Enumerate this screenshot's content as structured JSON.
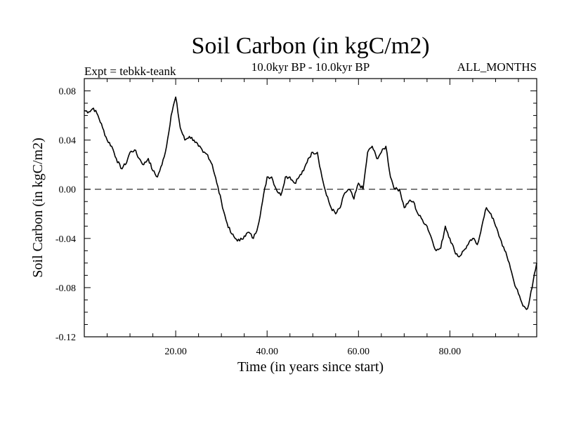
{
  "chart_data": {
    "type": "line",
    "title": "Soil Carbon (in kgC/m2)",
    "subtitle": "10.0kyr BP - 10.0kyr BP",
    "expt_label": "Expt = tebkk-teank",
    "months_label": "ALL_MONTHS",
    "xlabel": "Time (in years since start)",
    "ylabel": "Soil Carbon (in kgC/m2)",
    "xlim": [
      0,
      99
    ],
    "ylim": [
      -0.12,
      0.09
    ],
    "x_ticks": [
      20,
      40,
      60,
      80
    ],
    "x_tick_labels": [
      "20.00",
      "40.00",
      "60.00",
      "80.00"
    ],
    "y_ticks": [
      0.08,
      0.04,
      0.0,
      -0.04,
      -0.08,
      -0.12
    ],
    "y_tick_labels": [
      "0.08",
      "0.04",
      "0.00",
      "-0.04",
      "-0.08",
      "-0.12"
    ],
    "reference_line": {
      "y": 0.0,
      "style": "dashed"
    },
    "series": [
      {
        "name": "Soil Carbon",
        "x": [
          0,
          1,
          2,
          3,
          4,
          5,
          6,
          7,
          8,
          9,
          10,
          11,
          12,
          13,
          14,
          15,
          16,
          17,
          18,
          19,
          20,
          21,
          22,
          23,
          24,
          25,
          26,
          27,
          28,
          29,
          30,
          31,
          32,
          33,
          34,
          35,
          36,
          37,
          38,
          39,
          40,
          41,
          42,
          43,
          44,
          45,
          46,
          47,
          48,
          49,
          50,
          51,
          52,
          53,
          54,
          55,
          56,
          57,
          58,
          59,
          60,
          61,
          62,
          63,
          64,
          65,
          66,
          67,
          68,
          69,
          70,
          71,
          72,
          73,
          74,
          75,
          76,
          77,
          78,
          79,
          80,
          81,
          82,
          83,
          84,
          85,
          86,
          87,
          88,
          89,
          90,
          91,
          92,
          93,
          94,
          95,
          96,
          97,
          98,
          99
        ],
        "values": [
          0.064,
          0.063,
          0.066,
          0.06,
          0.05,
          0.04,
          0.035,
          0.025,
          0.017,
          0.02,
          0.03,
          0.032,
          0.025,
          0.02,
          0.025,
          0.015,
          0.01,
          0.02,
          0.035,
          0.06,
          0.075,
          0.05,
          0.04,
          0.043,
          0.04,
          0.035,
          0.03,
          0.028,
          0.02,
          0.005,
          -0.01,
          -0.025,
          -0.035,
          -0.04,
          -0.042,
          -0.038,
          -0.035,
          -0.04,
          -0.03,
          -0.01,
          0.01,
          0.01,
          0.0,
          -0.005,
          0.01,
          0.01,
          0.005,
          0.01,
          0.015,
          0.025,
          0.03,
          0.03,
          0.01,
          -0.005,
          -0.015,
          -0.02,
          -0.015,
          -0.003,
          0.0,
          -0.008,
          0.005,
          0.0,
          0.03,
          0.035,
          0.025,
          0.03,
          0.035,
          0.01,
          0.0,
          0.0,
          -0.015,
          -0.01,
          -0.01,
          -0.02,
          -0.025,
          -0.03,
          -0.04,
          -0.05,
          -0.048,
          -0.03,
          -0.04,
          -0.05,
          -0.055,
          -0.05,
          -0.045,
          -0.04,
          -0.045,
          -0.03,
          -0.015,
          -0.02,
          -0.03,
          -0.04,
          -0.05,
          -0.06,
          -0.075,
          -0.085,
          -0.095,
          -0.097,
          -0.08,
          -0.06
        ]
      }
    ]
  }
}
